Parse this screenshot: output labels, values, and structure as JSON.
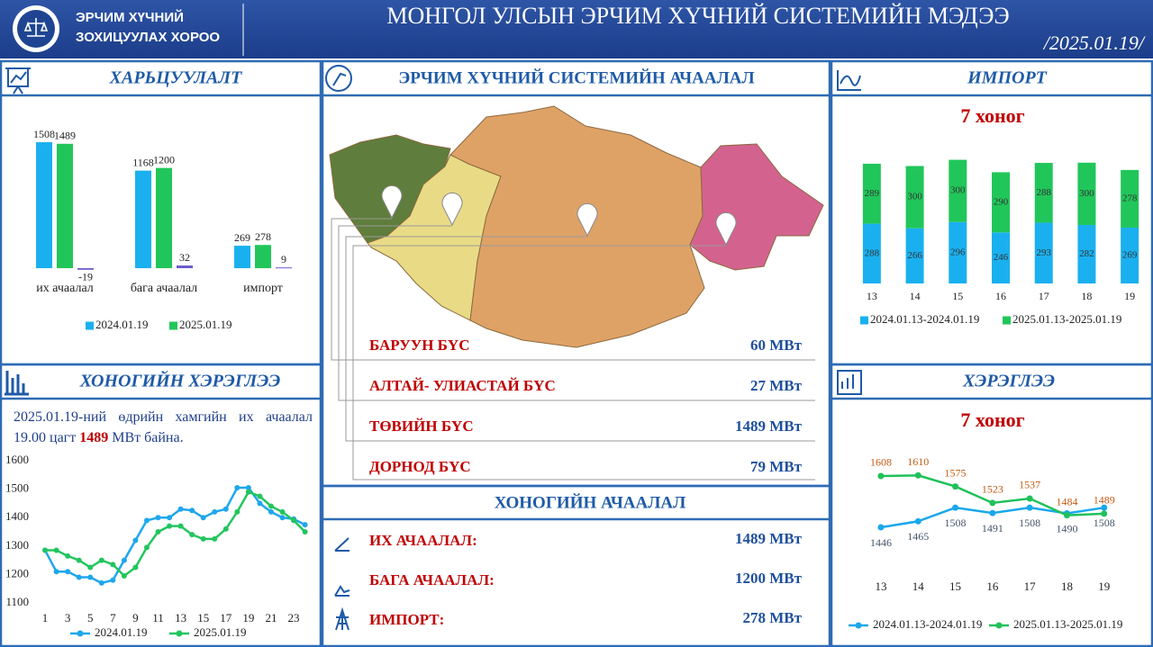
{
  "header": {
    "org": [
      "ЭРЧИМ ХҮЧНИЙ",
      "ЗОХИЦУУЛАХ ХОРОО"
    ],
    "title": "МОНГОЛ УЛСЫН ЭРЧИМ ХҮЧНИЙ СИСТЕМИЙН МЭДЭЭ",
    "date": "/2025.01.19/"
  },
  "daily_note": {
    "before": "2025.01.19-ний өдрийн хамгийн их ачаалал 19.00 цагт",
    "highlight": "1489",
    "after": "МВт байна."
  },
  "load_map": {
    "title": "ЭРЧИМ ХҮЧНИЙ СИСТЕМИЙН АЧААЛАЛ",
    "regions": [
      {
        "name": "БАРУУН БҮС",
        "value": "60 МВт"
      },
      {
        "name": "АЛТАЙ- УЛИАСТАЙ БҮС",
        "value": "27 МВт"
      },
      {
        "name": "ТӨВИЙН БҮС",
        "value": "1489 МВт"
      },
      {
        "name": "ДОРНОД БҮС",
        "value": "79 МВт"
      }
    ]
  },
  "daily_load": {
    "title": "ХОНОГИЙН АЧААЛАЛ",
    "items": [
      {
        "name": "ИХ АЧААЛАЛ:",
        "value": "1489 МВт"
      },
      {
        "name": "БАГА АЧААЛАЛ:",
        "value": "1200 МВт"
      },
      {
        "name": "ИМПОРТ:",
        "value": "278 МВт"
      }
    ]
  },
  "chart_data": [
    {
      "type": "bar",
      "title": "ХАРЬЦУУЛАЛТ",
      "categories": [
        "их ачаалал",
        "бага ачаалал",
        "импорт"
      ],
      "ylim": [
        -200,
        1600
      ],
      "series": [
        {
          "name": "2024.01.19",
          "color": "#1ab0ef",
          "values": [
            1508,
            1168,
            269
          ]
        },
        {
          "name": "2025.01.19",
          "color": "#21c65a",
          "values": [
            1489,
            1200,
            278
          ]
        },
        {
          "color": "#6a5acd",
          "values": [
            -19,
            32,
            9
          ]
        }
      ]
    },
    {
      "type": "line",
      "title": "ХОНОГИЙН ХЭРЭГЛЭЭ",
      "x": [
        1,
        2,
        3,
        4,
        5,
        6,
        7,
        8,
        9,
        10,
        11,
        12,
        13,
        14,
        15,
        16,
        17,
        18,
        19,
        20,
        21,
        22,
        23,
        24
      ],
      "xlim": [
        0,
        24
      ],
      "xticks": [
        1,
        3,
        5,
        7,
        9,
        11,
        13,
        15,
        17,
        19,
        21,
        23
      ],
      "ylim": [
        1100,
        1600
      ],
      "yticks": [
        1100,
        1200,
        1300,
        1400,
        1500,
        1600
      ],
      "series": [
        {
          "name": "2024.01.19",
          "color": "#1ea7ec",
          "values": [
            1285,
            1210,
            1210,
            1190,
            1190,
            1170,
            1180,
            1250,
            1320,
            1390,
            1400,
            1400,
            1430,
            1425,
            1400,
            1420,
            1430,
            1505,
            1505,
            1450,
            1420,
            1400,
            1395,
            1375
          ]
        },
        {
          "name": "2025.01.19",
          "color": "#22c55e",
          "values": [
            1285,
            1285,
            1265,
            1250,
            1225,
            1250,
            1235,
            1195,
            1225,
            1295,
            1350,
            1370,
            1370,
            1340,
            1325,
            1325,
            1360,
            1420,
            1490,
            1475,
            1440,
            1420,
            1390,
            1350
          ]
        }
      ]
    },
    {
      "type": "bar",
      "stacked": true,
      "title": "ИМПОРТ",
      "subtitle": "7 хоног",
      "categories": [
        "13",
        "14",
        "15",
        "16",
        "17",
        "18",
        "19"
      ],
      "ylim": [
        0,
        700
      ],
      "series": [
        {
          "name": "2024.01.13-2024.01.19",
          "color": "#1ab0ef",
          "values": [
            288,
            266,
            296,
            246,
            293,
            282,
            269
          ]
        },
        {
          "name": "2025.01.13-2025.01.19",
          "color": "#21c65a",
          "values": [
            289,
            300,
            300,
            290,
            288,
            300,
            278
          ]
        }
      ]
    },
    {
      "type": "line",
      "title": "ХЭРЭГЛЭЭ",
      "subtitle": "7 хоног",
      "categories": [
        "13",
        "14",
        "15",
        "16",
        "17",
        "18",
        "19"
      ],
      "ylim": [
        1350,
        1700
      ],
      "data_labels": true,
      "series": [
        {
          "name": "2024.01.13-2024.01.19",
          "color": "#1aa7ec",
          "label_color": "#44546a",
          "values": [
            1446,
            1465,
            1508,
            1491,
            1508,
            1490,
            1508
          ]
        },
        {
          "name": "2025.01.13-2025.01.19",
          "color": "#1fc15a",
          "label_color": "#c55a11",
          "values": [
            1608,
            1610,
            1575,
            1523,
            1537,
            1484,
            1489
          ]
        }
      ]
    }
  ]
}
